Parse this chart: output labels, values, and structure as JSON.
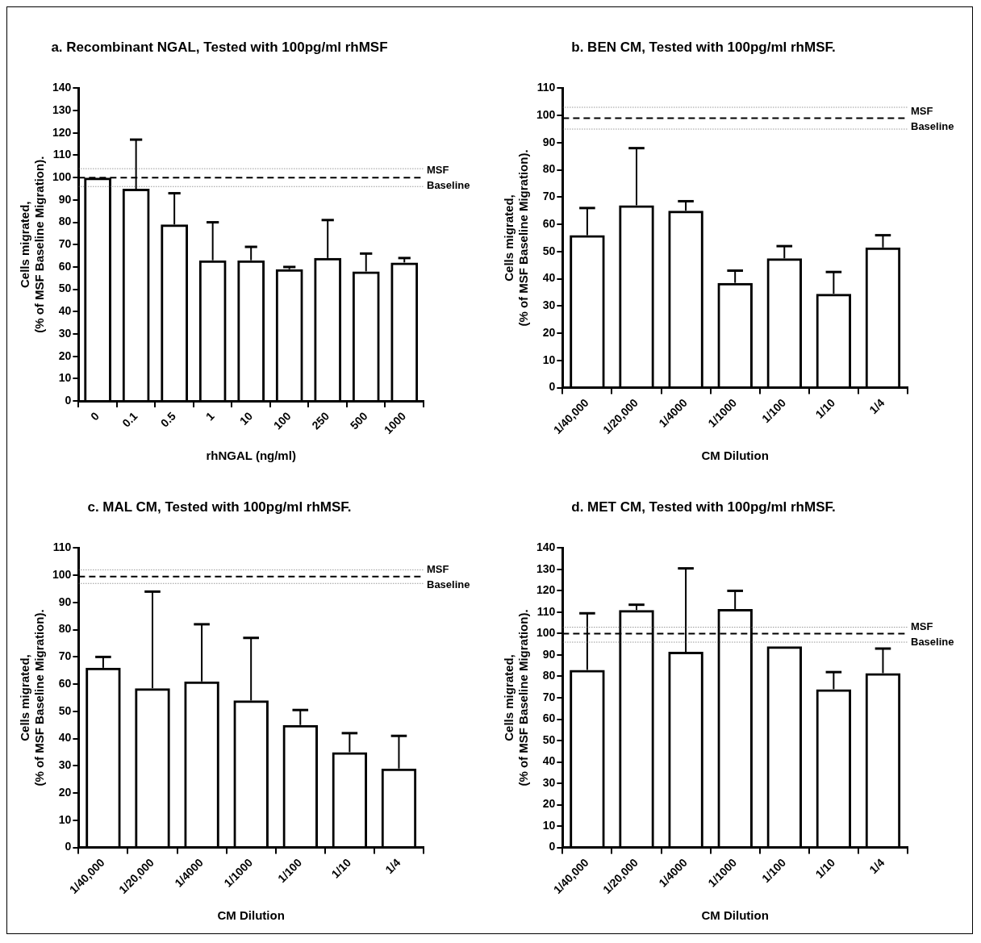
{
  "chart_data": [
    {
      "type": "bar",
      "title": "a. Recombinant NGAL, Tested with 100pg/ml rhMSF",
      "xlabel": "rhNGAL (ng/ml)",
      "ylabel": "Cells migrated,\n(% of MSF Baseline Migration).",
      "categories": [
        "0",
        "0.1",
        "0.5",
        "1",
        "10",
        "100",
        "250",
        "500",
        "1000"
      ],
      "values": [
        100,
        95,
        79,
        63,
        63,
        59,
        64,
        58,
        62
      ],
      "errors": [
        null,
        [
          95,
          117
        ],
        [
          79,
          93
        ],
        [
          63,
          80
        ],
        [
          63,
          69
        ],
        [
          59,
          60
        ],
        [
          64,
          81
        ],
        [
          58,
          66
        ],
        [
          62,
          64
        ]
      ],
      "colors": [
        "#000000",
        "#000000",
        "#000000",
        "#000000",
        "#000000",
        "#000000",
        "#000000",
        "#000000",
        "#000000"
      ],
      "ylim": [
        0,
        140
      ],
      "yticks": [
        0,
        10,
        20,
        30,
        40,
        50,
        60,
        70,
        80,
        90,
        100,
        110,
        120,
        130,
        140
      ],
      "ref_lines": [
        {
          "axis": "y",
          "value": 100,
          "label": "MSF Baseline",
          "line_style": "dashed",
          "color": "#000000"
        },
        {
          "axis": "y",
          "value": 104,
          "line_style": "dotted",
          "color": "#666666"
        },
        {
          "axis": "y",
          "value": 96,
          "line_style": "dotted",
          "color": "#666666"
        }
      ],
      "grid": false,
      "legend": false
    },
    {
      "type": "bar",
      "title": "b. BEN CM, Tested with 100pg/ml rhMSF.",
      "xlabel": "CM Dilution",
      "ylabel": "Cells migrated,\n(% of MSF Baseline Migration).",
      "categories": [
        "1/40,000",
        "1/20,000",
        "1/4000",
        "1/1000",
        "1/100",
        "1/10",
        "1/4"
      ],
      "values": [
        56,
        67,
        65,
        38.5,
        47.5,
        34.5,
        51.5
      ],
      "errors": [
        [
          56,
          66
        ],
        [
          67,
          88
        ],
        [
          65,
          68.5
        ],
        [
          38.5,
          43
        ],
        [
          47.5,
          52
        ],
        [
          34.5,
          42.5
        ],
        [
          51.5,
          56
        ]
      ],
      "colors": [
        "#000000",
        "#000000",
        "#000000",
        "#000000",
        "#000000",
        "#000000",
        "#000000"
      ],
      "ylim": [
        0,
        110
      ],
      "yticks": [
        0,
        10,
        20,
        30,
        40,
        50,
        60,
        70,
        80,
        90,
        100,
        110
      ],
      "ref_lines": [
        {
          "axis": "y",
          "value": 99,
          "label": "MSF Baseline",
          "line_style": "dashed",
          "color": "#000000"
        },
        {
          "axis": "y",
          "value": 103,
          "line_style": "dotted",
          "color": "#666666"
        },
        {
          "axis": "y",
          "value": 95,
          "line_style": "dotted",
          "color": "#666666"
        }
      ],
      "grid": false,
      "legend": false
    },
    {
      "type": "bar",
      "title": "c. MAL CM, Tested with 100pg/ml rhMSF.",
      "xlabel": "CM Dilution",
      "ylabel": "Cells migrated,\n(% of MSF Baseline Migration).",
      "categories": [
        "1/40,000",
        "1/20,000",
        "1/4000",
        "1/1000",
        "1/100",
        "1/10",
        "1/4"
      ],
      "values": [
        66,
        58.5,
        61,
        54,
        45,
        35,
        29
      ],
      "errors": [
        [
          66,
          70
        ],
        [
          58.5,
          94
        ],
        [
          61,
          82
        ],
        [
          54,
          77
        ],
        [
          45,
          50.5
        ],
        [
          35,
          42
        ],
        [
          29,
          41
        ]
      ],
      "colors": [
        "#000000",
        "#000000",
        "#000000",
        "#000000",
        "#000000",
        "#000000",
        "#000000"
      ],
      "ylim": [
        0,
        110
      ],
      "yticks": [
        0,
        10,
        20,
        30,
        40,
        50,
        60,
        70,
        80,
        90,
        100,
        110
      ],
      "ref_lines": [
        {
          "axis": "y",
          "value": 99.5,
          "label": "MSF Baseline",
          "line_style": "dashed",
          "color": "#000000"
        },
        {
          "axis": "y",
          "value": 102,
          "line_style": "dotted",
          "color": "#666666"
        },
        {
          "axis": "y",
          "value": 97,
          "line_style": "dotted",
          "color": "#666666"
        }
      ],
      "grid": false,
      "legend": false
    },
    {
      "type": "bar",
      "title": "d. MET CM, Tested with 100pg/ml rhMSF.",
      "xlabel": "CM Dilution",
      "ylabel": "Cells migrated,\n(% of MSF Baseline Migration).",
      "categories": [
        "1/40,000",
        "1/20,000",
        "1/4000",
        "1/1000",
        "1/100",
        "1/10",
        "1/4"
      ],
      "values": [
        83,
        111,
        91.5,
        111.5,
        94,
        74,
        81.5
      ],
      "errors": [
        [
          83,
          109.5
        ],
        [
          111,
          113.5
        ],
        [
          91.5,
          130.5
        ],
        [
          111.5,
          120
        ],
        null,
        [
          74,
          82
        ],
        [
          81.5,
          93
        ]
      ],
      "colors": [
        "#000000",
        "#000000",
        "#000000",
        "#000000",
        "#000000",
        "#000000",
        "#000000"
      ],
      "ylim": [
        0,
        140
      ],
      "yticks": [
        0,
        10,
        20,
        30,
        40,
        50,
        60,
        70,
        80,
        90,
        100,
        110,
        120,
        130,
        140
      ],
      "ref_lines": [
        {
          "axis": "y",
          "value": 100,
          "label": "MSF Baseline",
          "line_style": "dashed",
          "color": "#000000"
        },
        {
          "axis": "y",
          "value": 103,
          "line_style": "dotted",
          "color": "#666666"
        },
        {
          "axis": "y",
          "value": 96,
          "line_style": "dotted",
          "color": "#666666"
        }
      ],
      "grid": false,
      "legend": false
    }
  ]
}
